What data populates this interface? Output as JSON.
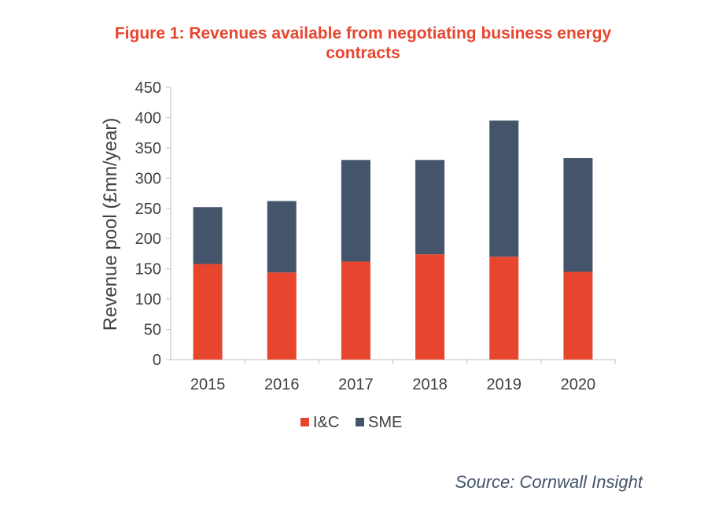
{
  "chart_data": {
    "type": "bar",
    "stacked": true,
    "title": [
      "Figure 1: Revenues available from negotiating business energy",
      "contracts"
    ],
    "ylabel": "Revenue pool (£mn/year)",
    "xlabel": "",
    "ylim": [
      0,
      450
    ],
    "yticks": [
      0,
      50,
      100,
      150,
      200,
      250,
      300,
      350,
      400,
      450
    ],
    "categories": [
      "2015",
      "2016",
      "2017",
      "2018",
      "2019",
      "2020"
    ],
    "series": [
      {
        "name": "I&C",
        "color": "#e8452f",
        "values": [
          158,
          144,
          162,
          174,
          170,
          145
        ]
      },
      {
        "name": "SME",
        "color": "#44546a",
        "values": [
          94,
          118,
          168,
          156,
          225,
          188
        ]
      }
    ],
    "legend_position": "bottom",
    "grid": false
  },
  "source": "Source: Cornwall Insight"
}
